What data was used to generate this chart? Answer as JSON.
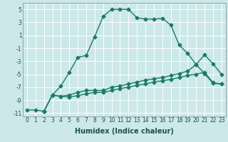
{
  "xlabel": "Humidex (Indice chaleur)",
  "bg_color": "#cce8e8",
  "grid_color": "#ffffff",
  "line_color": "#1a7a6a",
  "markersize": 2.5,
  "linewidth": 1.0,
  "xlim": [
    -0.5,
    23.5
  ],
  "ylim": [
    -11.5,
    6.0
  ],
  "xticks": [
    0,
    1,
    2,
    3,
    4,
    5,
    6,
    7,
    8,
    9,
    10,
    11,
    12,
    13,
    14,
    15,
    16,
    17,
    18,
    19,
    20,
    21,
    22,
    23
  ],
  "yticks": [
    -11,
    -9,
    -7,
    -5,
    -3,
    -1,
    1,
    3,
    5
  ],
  "line1_x": [
    0,
    1,
    2,
    3,
    4,
    5,
    6,
    7,
    8,
    9,
    10,
    11,
    12,
    13,
    14,
    15,
    16,
    17,
    18,
    19,
    20,
    21,
    22,
    23
  ],
  "line1_y": [
    -10.5,
    -10.5,
    -10.7,
    -8.2,
    -6.8,
    -4.7,
    -2.4,
    -2.1,
    0.8,
    3.9,
    5.0,
    5.0,
    5.0,
    3.7,
    3.5,
    3.5,
    3.6,
    2.6,
    -0.5,
    -1.8,
    -3.5,
    -4.9,
    -6.4,
    -6.5
  ],
  "line2_x": [
    2,
    3,
    4,
    5,
    6,
    7,
    8,
    9,
    10,
    11,
    12,
    13,
    14,
    15,
    16,
    17,
    18,
    19,
    20,
    21,
    22,
    23
  ],
  "line2_y": [
    -10.7,
    -8.2,
    -8.4,
    -8.5,
    -8.3,
    -8.0,
    -7.8,
    -7.8,
    -7.5,
    -7.2,
    -7.0,
    -6.7,
    -6.5,
    -6.2,
    -6.0,
    -5.8,
    -5.5,
    -5.2,
    -5.0,
    -4.7,
    -6.3,
    -6.5
  ],
  "line3_x": [
    2,
    3,
    4,
    5,
    6,
    7,
    8,
    9,
    10,
    11,
    12,
    13,
    14,
    15,
    16,
    17,
    18,
    19,
    20,
    21,
    22,
    23
  ],
  "line3_y": [
    -10.7,
    -8.2,
    -8.4,
    -8.2,
    -7.8,
    -7.5,
    -7.5,
    -7.5,
    -7.0,
    -6.8,
    -6.5,
    -6.2,
    -5.9,
    -5.7,
    -5.5,
    -5.2,
    -4.9,
    -4.5,
    -3.5,
    -2.0,
    -3.4,
    -5.0
  ],
  "tick_fontsize": 5.5,
  "xlabel_fontsize": 7.0
}
